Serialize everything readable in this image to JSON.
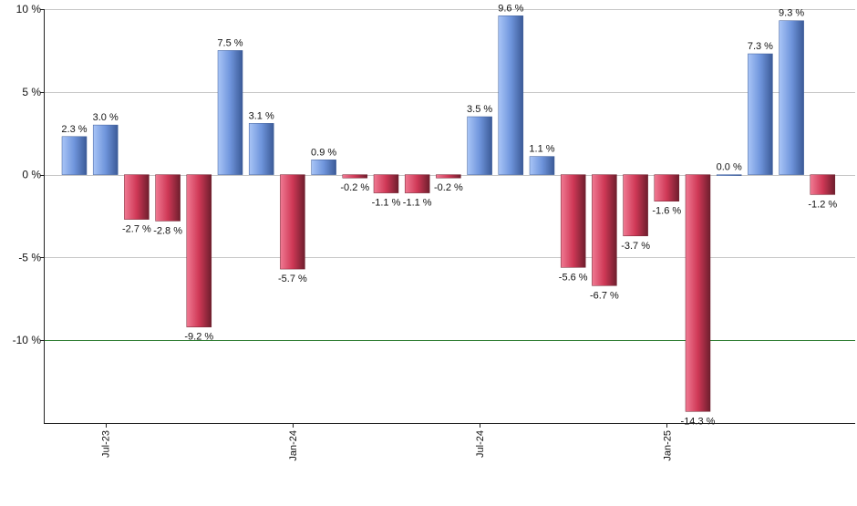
{
  "chart_data": {
    "type": "bar",
    "title": "",
    "xlabel": "",
    "ylabel": "",
    "ylim": [
      -15,
      10
    ],
    "grid": true,
    "legend": "none",
    "y_ticks": [
      10,
      5,
      0,
      -5,
      -10
    ],
    "y_tick_labels": [
      "10 %",
      "5 %",
      "0 %",
      "-5 %",
      "-10 %"
    ],
    "x_tick_labels": [
      {
        "label": "Jul-23",
        "index": 1
      },
      {
        "label": "Jan-24",
        "index": 7
      },
      {
        "label": "Jul-24",
        "index": 13
      },
      {
        "label": "Jan-25",
        "index": 19
      }
    ],
    "reference_line": -10,
    "values": [
      2.3,
      3.0,
      -2.7,
      -2.8,
      -9.2,
      7.5,
      3.1,
      -5.7,
      0.9,
      -0.2,
      -1.1,
      -1.1,
      -0.2,
      3.5,
      9.6,
      1.1,
      -5.6,
      -6.7,
      -3.7,
      -1.6,
      -14.3,
      0.0,
      7.3,
      9.3,
      -1.2
    ],
    "data_labels": [
      "2.3 %",
      "3.0 %",
      "-2.7 %",
      "-2.8 %",
      "-9.2 %",
      "7.5 %",
      "3.1 %",
      "-5.7 %",
      "0.9 %",
      "-0.2 %",
      "-1.1 %",
      "-1.1 %",
      "-0.2 %",
      "3.5 %",
      "9.6 %",
      "1.1 %",
      "-5.6 %",
      "-6.7 %",
      "-3.7 %",
      "-1.6 %",
      "-14.3 %",
      "0.0 %",
      "7.3 %",
      "9.3 %",
      "-1.2 %"
    ],
    "colors": {
      "positive_light": "#a9c5f7",
      "positive_mid": "#6f95dc",
      "positive_dark": "#3b5a97",
      "negative_light": "#f07a93",
      "negative_mid": "#cf3856",
      "negative_dark": "#6e1e2d",
      "grid": "#c8c8c8",
      "axis": "#222222",
      "reference_line": "#2e7d32"
    }
  }
}
